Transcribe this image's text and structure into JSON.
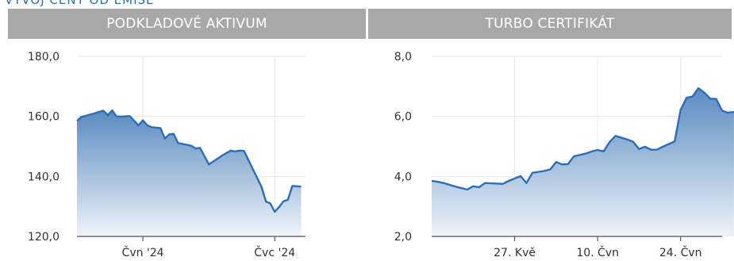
{
  "page": {
    "top_title": "VÝVOJ CENY OD EMISE"
  },
  "colors": {
    "line": "#2a6ebb",
    "fill_top": "#5a8bc0",
    "fill_bottom": "#eef3f9",
    "grid": "#e6e6e6",
    "header_bg": "#a8a8a8"
  },
  "chart_data": [
    {
      "title": "PODKLADOVÉ AKTIVUM",
      "type": "area",
      "ylim": [
        120,
        180
      ],
      "yticks": [
        "180,0",
        "160,0",
        "140,0",
        "120,0"
      ],
      "yticks_values": [
        180,
        160,
        140,
        120
      ],
      "xticks": [
        {
          "label": "Čvn '24",
          "x": "2024-06-01"
        },
        {
          "label": "Čvc '24",
          "x": "2024-07-01"
        }
      ],
      "xlim": [
        "2024-05-17",
        "2024-07-08"
      ],
      "series": [
        {
          "points": [
            [
              "2024-05-17",
              158.5
            ],
            [
              "2024-05-18",
              159.8
            ],
            [
              "2024-05-20",
              160.6
            ],
            [
              "2024-05-21",
              161.0
            ],
            [
              "2024-05-22",
              161.5
            ],
            [
              "2024-05-23",
              161.9
            ],
            [
              "2024-05-24",
              160.4
            ],
            [
              "2024-05-25",
              162.0
            ],
            [
              "2024-05-26",
              160.0
            ],
            [
              "2024-05-27",
              159.9
            ],
            [
              "2024-05-29",
              160.1
            ],
            [
              "2024-05-31",
              157.0
            ],
            [
              "2024-06-01",
              158.7
            ],
            [
              "2024-06-02",
              157.0
            ],
            [
              "2024-06-03",
              156.4
            ],
            [
              "2024-06-05",
              156.1
            ],
            [
              "2024-06-06",
              152.6
            ],
            [
              "2024-06-07",
              154.0
            ],
            [
              "2024-06-08",
              154.2
            ],
            [
              "2024-06-09",
              151.1
            ],
            [
              "2024-06-11",
              150.5
            ],
            [
              "2024-06-12",
              150.2
            ],
            [
              "2024-06-13",
              149.3
            ],
            [
              "2024-06-14",
              149.5
            ],
            [
              "2024-06-16",
              144.0
            ],
            [
              "2024-06-19",
              146.9
            ],
            [
              "2024-06-21",
              148.6
            ],
            [
              "2024-06-22",
              148.3
            ],
            [
              "2024-06-23",
              148.6
            ],
            [
              "2024-06-24",
              148.5
            ],
            [
              "2024-06-26",
              142.5
            ],
            [
              "2024-06-28",
              136.5
            ],
            [
              "2024-06-29",
              131.6
            ],
            [
              "2024-06-30",
              131.0
            ],
            [
              "2024-07-01",
              128.2
            ],
            [
              "2024-07-02",
              129.8
            ],
            [
              "2024-07-03",
              131.7
            ],
            [
              "2024-07-04",
              132.2
            ],
            [
              "2024-07-05",
              136.8
            ],
            [
              "2024-07-07",
              136.6
            ]
          ]
        }
      ]
    },
    {
      "title": "TURBO CERTIFIKÁT",
      "type": "area",
      "ylim": [
        2.0,
        8.0
      ],
      "yticks": [
        "8,0",
        "6,0",
        "4,0",
        "2,0"
      ],
      "yticks_values": [
        8,
        6,
        4,
        2
      ],
      "xticks": [
        {
          "label": "27. Kvě",
          "x": "2024-05-27"
        },
        {
          "label": "10. Čvn",
          "x": "2024-06-10"
        },
        {
          "label": "24. Čvn",
          "x": "2024-06-24"
        }
      ],
      "xlim": [
        "2024-05-13",
        "2024-07-01"
      ],
      "series": [
        {
          "points": [
            [
              "2024-05-13",
              3.85
            ],
            [
              "2024-05-14",
              3.82
            ],
            [
              "2024-05-15",
              3.78
            ],
            [
              "2024-05-16",
              3.72
            ],
            [
              "2024-05-17",
              3.66
            ],
            [
              "2024-05-19",
              3.56
            ],
            [
              "2024-05-20",
              3.67
            ],
            [
              "2024-05-21",
              3.64
            ],
            [
              "2024-05-22",
              3.78
            ],
            [
              "2024-05-24",
              3.76
            ],
            [
              "2024-05-25",
              3.75
            ],
            [
              "2024-05-26",
              3.85
            ],
            [
              "2024-05-28",
              4.01
            ],
            [
              "2024-05-29",
              3.78
            ],
            [
              "2024-05-30",
              4.12
            ],
            [
              "2024-06-01",
              4.18
            ],
            [
              "2024-06-02",
              4.23
            ],
            [
              "2024-06-03",
              4.48
            ],
            [
              "2024-06-04",
              4.4
            ],
            [
              "2024-06-05",
              4.41
            ],
            [
              "2024-06-06",
              4.67
            ],
            [
              "2024-06-08",
              4.76
            ],
            [
              "2024-06-09",
              4.83
            ],
            [
              "2024-06-10",
              4.88
            ],
            [
              "2024-06-11",
              4.83
            ],
            [
              "2024-06-12",
              5.14
            ],
            [
              "2024-06-13",
              5.35
            ],
            [
              "2024-06-15",
              5.23
            ],
            [
              "2024-06-16",
              5.15
            ],
            [
              "2024-06-17",
              4.91
            ],
            [
              "2024-06-18",
              4.99
            ],
            [
              "2024-06-19",
              4.89
            ],
            [
              "2024-06-20",
              4.89
            ],
            [
              "2024-06-21",
              4.99
            ],
            [
              "2024-06-23",
              5.16
            ],
            [
              "2024-06-24",
              6.21
            ],
            [
              "2024-06-25",
              6.62
            ],
            [
              "2024-06-26",
              6.66
            ],
            [
              "2024-06-27",
              6.94
            ],
            [
              "2024-06-28",
              6.79
            ],
            [
              "2024-06-29",
              6.59
            ],
            [
              "2024-06-30",
              6.58
            ],
            [
              "2024-07-01",
              6.19
            ],
            [
              "2024-07-02",
              6.12
            ],
            [
              "2024-07-03",
              6.15
            ]
          ]
        }
      ]
    }
  ]
}
